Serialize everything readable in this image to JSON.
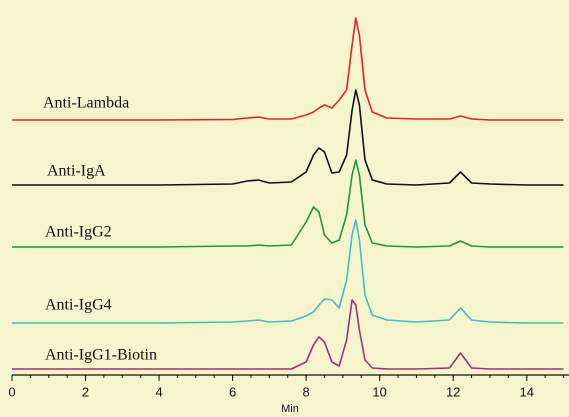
{
  "chart_data": {
    "type": "line",
    "x_label": "Min",
    "x": [
      0,
      2,
      4,
      6,
      6.4,
      6.7,
      7,
      7.6,
      8.0,
      8.2,
      8.35,
      8.5,
      8.7,
      8.9,
      9.1,
      9.25,
      9.35,
      9.45,
      9.6,
      9.8,
      10.2,
      11,
      11.9,
      12.2,
      12.5,
      13,
      14,
      15
    ],
    "series": [
      {
        "name": "Anti-Lambda",
        "color": "#e8202a",
        "values": [
          255,
          255,
          255,
          255.5,
          257,
          258,
          256,
          256,
          260,
          263,
          267,
          270,
          267,
          275,
          285,
          330,
          357,
          340,
          285,
          263,
          257,
          256,
          256,
          259,
          256,
          255,
          255,
          255
        ]
      },
      {
        "name": "Anti-IgA",
        "color": "#111111",
        "values": [
          190,
          190,
          190,
          191,
          194,
          195,
          192,
          193,
          203,
          220,
          227,
          223,
          202,
          203,
          220,
          265,
          285,
          270,
          215,
          195,
          191,
          190,
          192,
          203,
          192,
          191,
          190,
          190
        ]
      },
      {
        "name": "Anti-IgG2",
        "color": "#1a9a3a",
        "values": [
          128,
          128,
          128,
          129,
          129,
          130,
          129,
          130,
          153,
          168,
          163,
          140,
          132,
          135,
          160,
          200,
          215,
          200,
          150,
          132,
          129,
          128,
          129,
          134,
          129,
          128,
          128,
          128
        ]
      },
      {
        "name": "Anti-IgG4",
        "color": "#3bbfc8",
        "values": [
          52,
          52,
          52,
          53,
          54,
          55,
          53,
          54,
          59,
          63,
          70,
          76,
          75,
          67,
          95,
          140,
          155,
          135,
          80,
          60,
          55,
          53,
          55,
          67,
          55,
          53,
          52,
          52
        ]
      },
      {
        "name": "Anti-IgG1-Biotin",
        "color": "#a0307f",
        "values": [
          6,
          6,
          6,
          6,
          6,
          6,
          6,
          6,
          13,
          30,
          38,
          33,
          13,
          9,
          35,
          75,
          70,
          45,
          15,
          7,
          6,
          6,
          7,
          22,
          7,
          6,
          6,
          6
        ]
      }
    ],
    "xlim": [
      0,
      15.15
    ],
    "xticks": [
      0,
      2,
      4,
      6,
      8,
      10,
      12,
      14
    ],
    "ylim": [
      0,
      375
    ]
  }
}
